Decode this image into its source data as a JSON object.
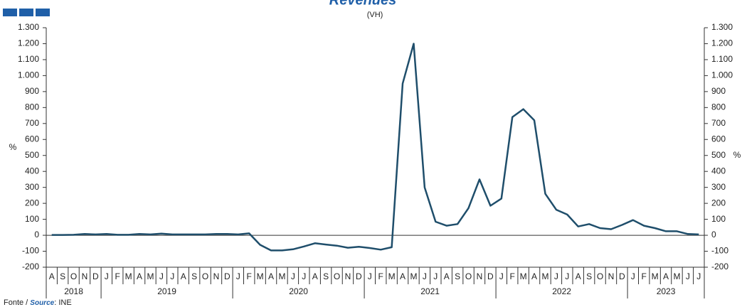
{
  "chart_data": {
    "type": "line",
    "title": "Revenues",
    "subtitle": "(VH)",
    "ylabel": "%",
    "y2label": "%",
    "categories": [
      "A",
      "S",
      "O",
      "N",
      "D",
      "J",
      "F",
      "M",
      "A",
      "M",
      "J",
      "J",
      "A",
      "S",
      "O",
      "N",
      "D",
      "J",
      "F",
      "M",
      "A",
      "M",
      "J",
      "J",
      "A",
      "S",
      "O",
      "N",
      "D",
      "J",
      "F",
      "M",
      "A",
      "M",
      "J",
      "J",
      "A",
      "S",
      "O",
      "N",
      "D",
      "J",
      "F",
      "M",
      "A",
      "M",
      "J",
      "J",
      "A",
      "S",
      "O",
      "N",
      "D",
      "J",
      "F",
      "M",
      "A",
      "M",
      "J",
      "J"
    ],
    "year_labels": [
      "2018",
      "2019",
      "2020",
      "2021",
      "2022",
      "2023"
    ],
    "series": [
      {
        "name": "Revenues",
        "color": "#1f4e6b",
        "values": [
          2,
          2,
          3,
          8,
          5,
          8,
          3,
          3,
          8,
          5,
          10,
          5,
          5,
          5,
          5,
          8,
          8,
          5,
          12,
          -60,
          -95,
          -95,
          -88,
          -70,
          -50,
          -58,
          -65,
          -78,
          -72,
          -80,
          -90,
          -75,
          950,
          1200,
          300,
          85,
          60,
          70,
          170,
          350,
          185,
          230,
          740,
          790,
          720,
          260,
          160,
          130,
          55,
          70,
          45,
          38,
          65,
          95,
          60,
          45,
          25,
          25,
          8,
          5
        ]
      }
    ],
    "ylim": [
      -200,
      1300
    ],
    "yticks": [
      -200,
      -100,
      0,
      100,
      200,
      300,
      400,
      500,
      600,
      700,
      800,
      900,
      {
        "value": 1000,
        "label": "1.000"
      },
      {
        "value": 1100,
        "label": "1.100"
      },
      {
        "value": 1200,
        "label": "1.200"
      },
      {
        "value": 1300,
        "label": "1.300"
      }
    ],
    "y2lim": [
      -200,
      1300
    ],
    "y2ticks": [
      -200,
      -100,
      0,
      100,
      200,
      300,
      400,
      500,
      600,
      700,
      800,
      900,
      {
        "value": 1000,
        "label": "1.000"
      },
      {
        "value": 1100,
        "label": "1.100"
      },
      {
        "value": 1200,
        "label": "1.200"
      },
      {
        "value": 1300,
        "label": "1.300"
      }
    ],
    "source": {
      "prefix": "Fonte / ",
      "term": "Source",
      "suffix": ": INE"
    }
  }
}
